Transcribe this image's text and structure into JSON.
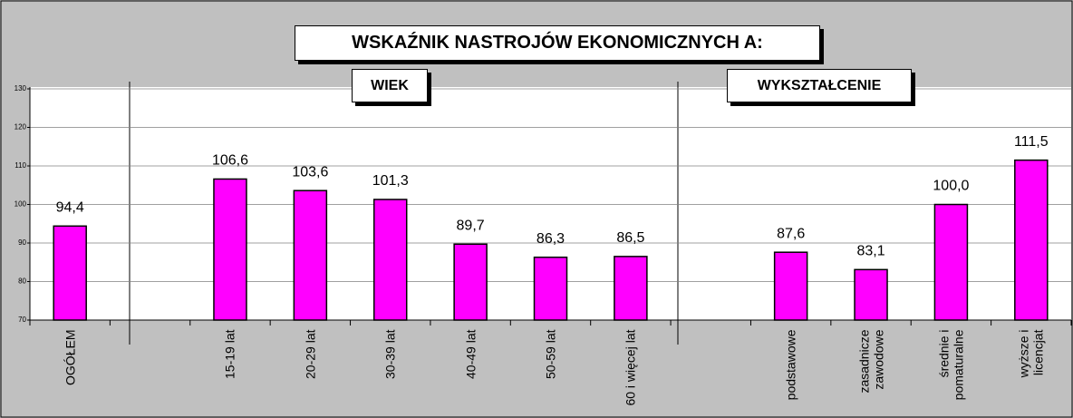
{
  "chart_data": {
    "type": "bar",
    "title": "WSKAŹNIK NASTROJÓW EKONOMICZNYCH A:",
    "group_labels": [
      "WIEK",
      "WYKSZTAŁCENIE"
    ],
    "categories": [
      "OGÓŁEM",
      null,
      "15-19 lat",
      "20-29 lat",
      "30-39 lat",
      "40-49 lat",
      "50-59 lat",
      "60 i więcej lat",
      null,
      "podstawowe",
      "zasadnicze zawodowe",
      "średnie i pomaturalne",
      "wyższe i licencjat"
    ],
    "values": [
      94.4,
      null,
      106.6,
      103.6,
      101.3,
      89.7,
      86.3,
      86.5,
      null,
      87.6,
      83.1,
      100.0,
      111.5
    ],
    "value_labels": [
      "94,4",
      null,
      "106,6",
      "103,6",
      "101,3",
      "89,7",
      "86,3",
      "86,5",
      null,
      "87,6",
      "83,1",
      "100,0",
      "111,5"
    ],
    "color": "#ff00ff",
    "ylim": [
      70,
      130
    ],
    "yticks": [
      70,
      80,
      90,
      100,
      110,
      120,
      130
    ],
    "grid": true
  }
}
